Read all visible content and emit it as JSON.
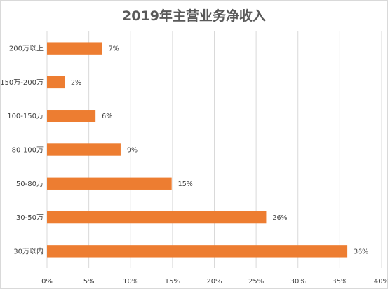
{
  "chart_data": {
    "type": "bar",
    "orientation": "horizontal",
    "title": "2019年主营业务净收入",
    "categories": [
      "200万以上",
      "150万-200万",
      "100-150万",
      "80-100万",
      "50-80万",
      "30-50万",
      "30万以内"
    ],
    "values": [
      6.6,
      2.1,
      5.8,
      8.8,
      14.9,
      26.2,
      35.9
    ],
    "data_labels": [
      "7%",
      "2%",
      "6%",
      "9%",
      "15%",
      "26%",
      "36%"
    ],
    "x_ticks": [
      "0%",
      "5%",
      "10%",
      "15%",
      "20%",
      "25%",
      "30%",
      "35%",
      "40%"
    ],
    "xlim": [
      0,
      40
    ],
    "xlabel": "",
    "ylabel": "",
    "grid": "vertical",
    "legend": "none",
    "bar_color": "#ed7d31",
    "grid_color": "#d9d9d9"
  }
}
